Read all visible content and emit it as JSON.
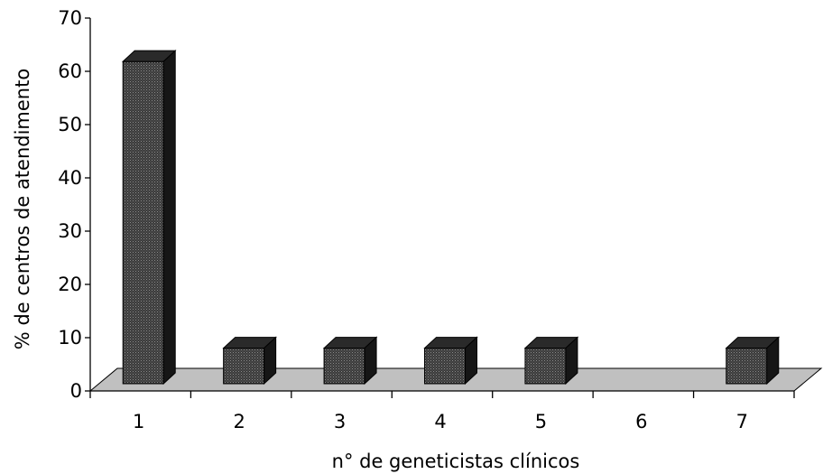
{
  "chart_data": {
    "type": "bar",
    "style": "3d",
    "categories": [
      "1",
      "2",
      "3",
      "4",
      "5",
      "6",
      "7"
    ],
    "values": [
      61.5,
      7.7,
      7.7,
      7.7,
      7.7,
      0,
      7.7
    ],
    "title": "",
    "xlabel": "n° de geneticistas clínicos",
    "ylabel": "% de centros de atendimento",
    "ylim": [
      0,
      70
    ],
    "yticks": [
      0,
      10,
      20,
      30,
      40,
      50,
      60,
      70
    ],
    "grid": false,
    "legend": "none",
    "colors": {
      "bar_front": "#3b3b3b",
      "bar_top": "#2a2a2a",
      "bar_side": "#161616",
      "floor": "#c0c0c0"
    }
  }
}
